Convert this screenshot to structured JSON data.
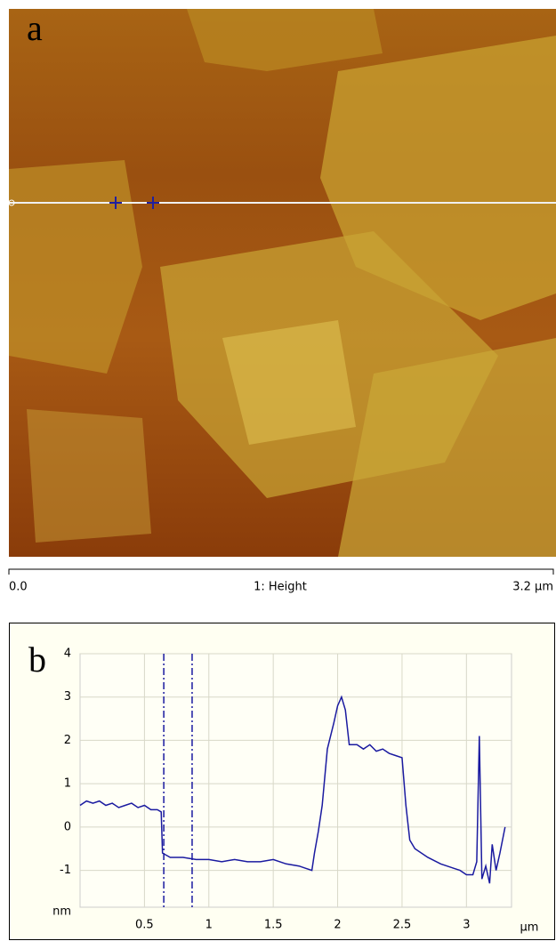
{
  "panel_a": {
    "label": "a",
    "scale_start": "0.0",
    "channel": "1: Height",
    "scale_end": "3.2 µm"
  },
  "chart_data": {
    "type": "line",
    "panel_label": "b",
    "x_unit": "µm",
    "y_unit": "nm",
    "xlim": [
      0,
      3.35
    ],
    "ylim": [
      -1.85,
      4
    ],
    "xticks": [
      0.5,
      1,
      1.5,
      2,
      2.5,
      3
    ],
    "yticks": [
      -1,
      0,
      1,
      2,
      3,
      4
    ],
    "grid": true,
    "cursors": [
      0.65,
      0.87
    ],
    "series": [
      {
        "color": "#1a1aa0",
        "x": [
          0,
          0.05,
          0.1,
          0.15,
          0.2,
          0.25,
          0.3,
          0.35,
          0.4,
          0.45,
          0.5,
          0.55,
          0.6,
          0.63,
          0.64,
          0.7,
          0.8,
          0.9,
          1.0,
          1.1,
          1.2,
          1.3,
          1.4,
          1.5,
          1.6,
          1.7,
          1.75,
          1.8,
          1.82,
          1.85,
          1.88,
          1.92,
          1.97,
          2.0,
          2.03,
          2.06,
          2.09,
          2.15,
          2.2,
          2.25,
          2.3,
          2.35,
          2.4,
          2.45,
          2.5,
          2.53,
          2.56,
          2.6,
          2.7,
          2.8,
          2.9,
          2.95,
          3.0,
          3.05,
          3.08,
          3.1,
          3.12,
          3.15,
          3.18,
          3.2,
          3.23,
          3.26,
          3.3
        ],
        "values": [
          0.5,
          0.6,
          0.55,
          0.6,
          0.5,
          0.55,
          0.45,
          0.5,
          0.55,
          0.45,
          0.5,
          0.4,
          0.4,
          0.35,
          -0.6,
          -0.7,
          -0.7,
          -0.75,
          -0.75,
          -0.8,
          -0.75,
          -0.8,
          -0.8,
          -0.75,
          -0.85,
          -0.9,
          -0.95,
          -1.0,
          -0.6,
          -0.1,
          0.5,
          1.8,
          2.4,
          2.8,
          3.0,
          2.7,
          1.9,
          1.9,
          1.8,
          1.9,
          1.75,
          1.8,
          1.7,
          1.65,
          1.6,
          0.5,
          -0.3,
          -0.5,
          -0.7,
          -0.85,
          -0.95,
          -1.0,
          -1.1,
          -1.1,
          -0.8,
          2.1,
          -1.2,
          -0.9,
          -1.3,
          -0.4,
          -1.0,
          -0.6,
          0.0
        ]
      }
    ]
  }
}
